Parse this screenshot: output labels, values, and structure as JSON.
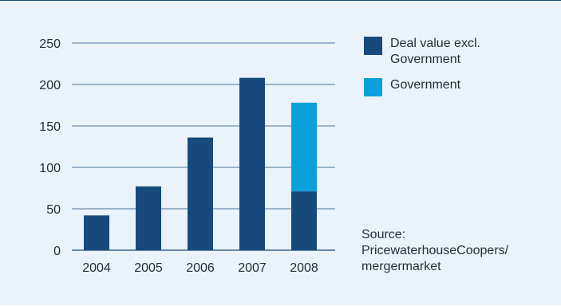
{
  "chart_data": {
    "type": "bar",
    "stacked": true,
    "categories": [
      "2004",
      "2005",
      "2006",
      "2007",
      "2008"
    ],
    "series": [
      {
        "name": "Deal value excl. Government",
        "color": "#17497c",
        "values": [
          42,
          77,
          136,
          208,
          71
        ]
      },
      {
        "name": "Government",
        "color": "#0aa0dc",
        "values": [
          0,
          0,
          0,
          0,
          107
        ]
      }
    ],
    "yticks": [
      0,
      50,
      100,
      150,
      200,
      250
    ],
    "ylim": [
      0,
      250
    ],
    "grid": true,
    "legend_position": "right"
  },
  "legend": {
    "items": [
      {
        "label": "Deal value excl. Government",
        "color": "#17497c"
      },
      {
        "label": "Government",
        "color": "#0aa0dc"
      }
    ]
  },
  "source": {
    "line1": "Source:",
    "line2": "PricewaterhouseCoopers/",
    "line3": "mergermarket"
  }
}
